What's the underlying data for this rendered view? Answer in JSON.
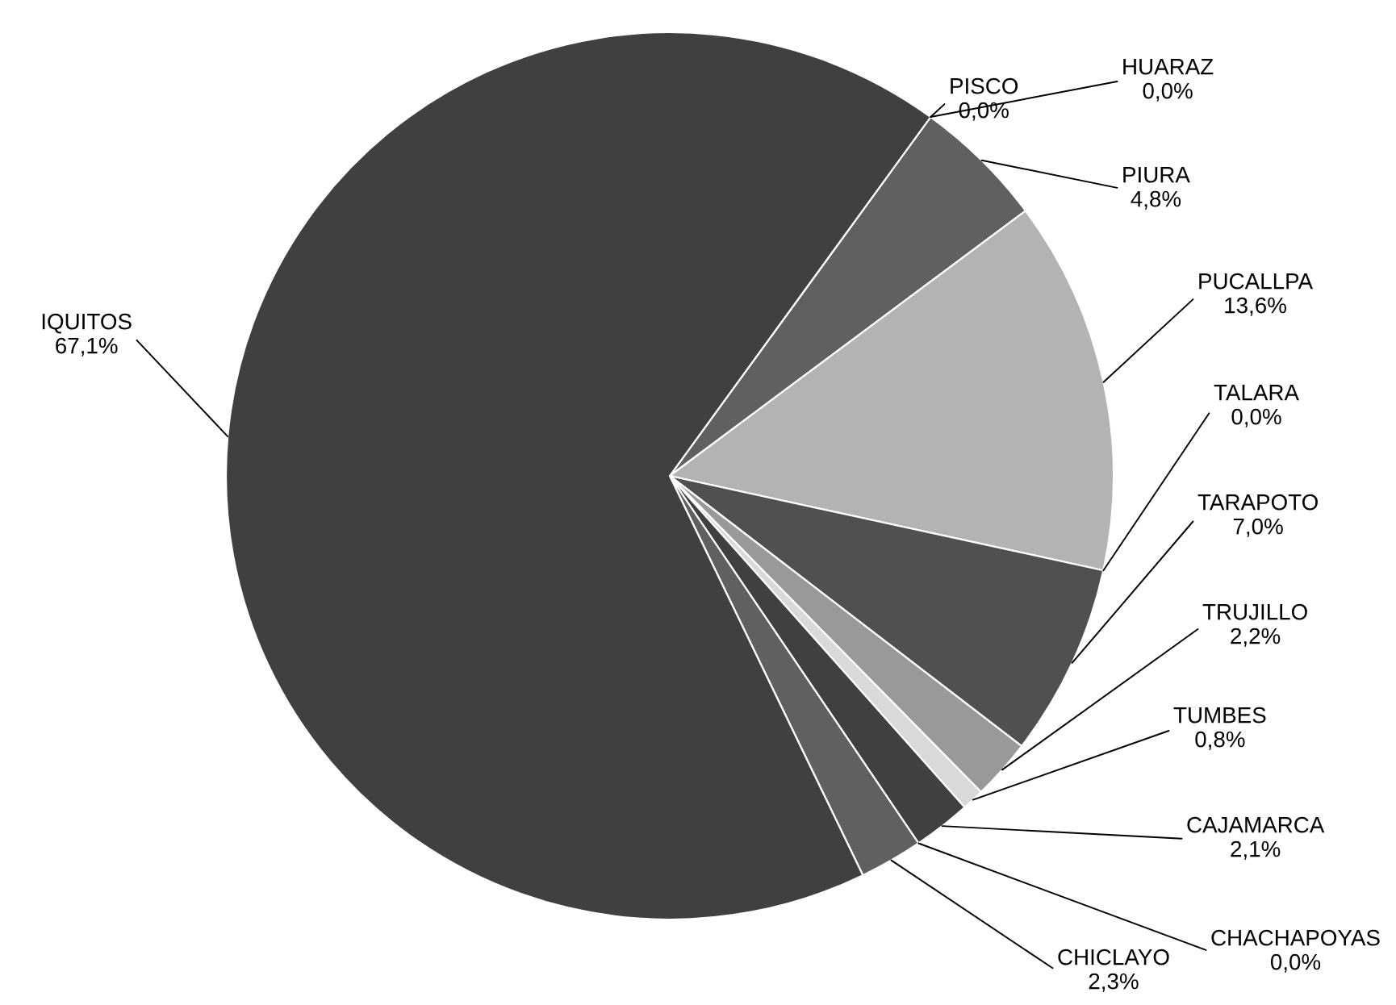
{
  "chart_data": {
    "type": "pie",
    "categories": [
      "PISCO",
      "HUARAZ",
      "PIURA",
      "PUCALLPA",
      "TALARA",
      "TARAPOTO",
      "TRUJILLO",
      "TUMBES",
      "CAJAMARCA",
      "CHACHAPOYAS",
      "CHICLAYO",
      "IQUITOS"
    ],
    "values": [
      0.0,
      0.0,
      4.8,
      13.6,
      0.0,
      7.0,
      2.2,
      0.8,
      2.1,
      0.0,
      2.3,
      67.1
    ],
    "value_labels": [
      "0,0%",
      "0,0%",
      "4,8%",
      "13,6%",
      "0,0%",
      "7,0%",
      "2,2%",
      "0,8%",
      "2,1%",
      "0,0%",
      "2,3%",
      "67,1%"
    ],
    "colors": [
      "#404040",
      "#404040",
      "#606060",
      "#b3b3b3",
      "#404040",
      "#505050",
      "#999999",
      "#d9d9d9",
      "#404040",
      "#404040",
      "#606060",
      "#404040"
    ]
  }
}
